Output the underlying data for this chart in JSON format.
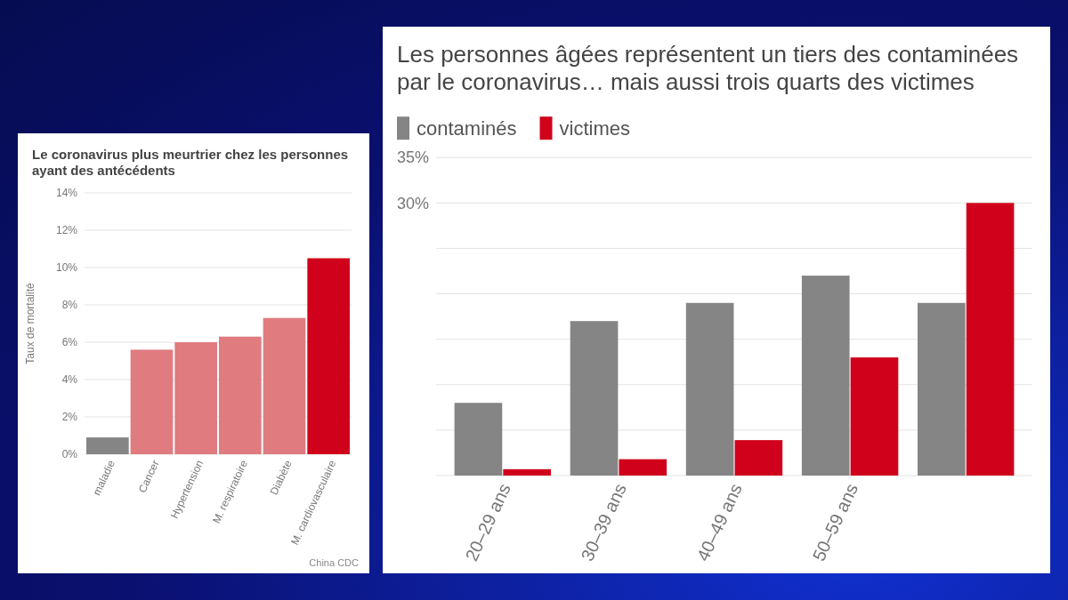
{
  "chart_data": [
    {
      "type": "bar",
      "title": "Les personnes âgées représentent un tiers des contaminées par le coronavirus… mais aussi trois quarts des victimes",
      "categories": [
        "20–29 ans",
        "30–39 ans",
        "40–49 ans",
        "50–59 ans",
        null
      ],
      "series": [
        {
          "name": "contaminés",
          "color": "#858585",
          "values": [
            8,
            17,
            19,
            22,
            19
          ]
        },
        {
          "name": "victimes",
          "color": "#d0021b",
          "values": [
            0.7,
            1.8,
            3.9,
            13,
            30
          ]
        }
      ],
      "ylim": [
        0,
        35
      ],
      "yticks": [
        {
          "value": 0,
          "label": null
        },
        {
          "value": 5,
          "label": null
        },
        {
          "value": 10,
          "label": null
        },
        {
          "value": 15,
          "label": null
        },
        {
          "value": 20,
          "label": null
        },
        {
          "value": 25,
          "label": null
        },
        {
          "value": 30,
          "label": "30%"
        },
        {
          "value": 35,
          "label": "35%"
        }
      ],
      "grid": "y",
      "legend": "top left"
    },
    {
      "type": "bar",
      "title": "Le coronavirus plus meurtrier chez les personnes ayant des antécédents",
      "categories": [
        "maladie",
        "Cancer",
        "Hypertension",
        "M. respiratoire",
        "Diabète",
        "M. cardiovasculaire"
      ],
      "values": [
        0.9,
        5.6,
        6.0,
        6.3,
        7.3,
        10.5
      ],
      "colors": [
        "#858585",
        "#e07b80",
        "#e07b80",
        "#e07b80",
        "#e07b80",
        "#d0021b"
      ],
      "ylabel": "Taux de mortalité",
      "ylim": [
        0,
        14
      ],
      "yticks": [
        {
          "value": 0,
          "label": "0%"
        },
        {
          "value": 2,
          "label": "2%"
        },
        {
          "value": 4,
          "label": "4%"
        },
        {
          "value": 6,
          "label": "6%"
        },
        {
          "value": 8,
          "label": "8%"
        },
        {
          "value": 10,
          "label": "10%"
        },
        {
          "value": 12,
          "label": "12%"
        },
        {
          "value": 14,
          "label": "14%"
        }
      ],
      "grid": "y",
      "annotations": [
        "China CDC"
      ]
    }
  ]
}
